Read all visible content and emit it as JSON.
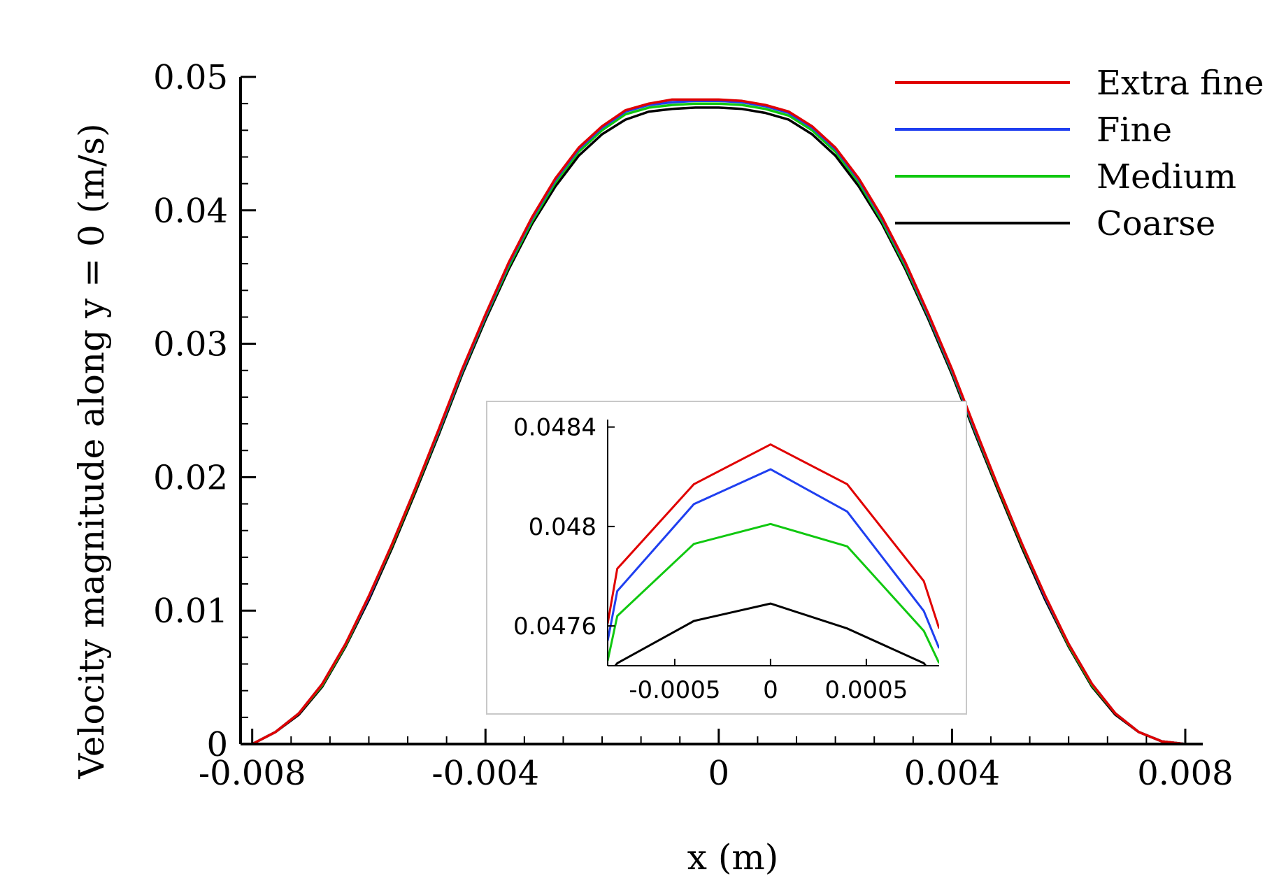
{
  "chart_data": {
    "type": "line",
    "title": "",
    "xlabel": "x (m)",
    "ylabel": "Velocity magnitude along y = 0 (m/s)",
    "xlim": [
      -0.0082,
      0.0083
    ],
    "ylim": [
      0,
      0.05
    ],
    "x_ticks": [
      -0.008,
      -0.004,
      0,
      0.004,
      0.008
    ],
    "x_tick_labels": [
      "-0.008",
      "-0.004",
      "0",
      "0.004",
      "0.008"
    ],
    "y_ticks": [
      0,
      0.01,
      0.02,
      0.03,
      0.04,
      0.05
    ],
    "y_tick_labels": [
      "0",
      "0.01",
      "0.02",
      "0.03",
      "0.04",
      "0.05"
    ],
    "legend_position": "top-right",
    "x": [
      -0.008,
      -0.0076,
      -0.0072,
      -0.0068,
      -0.0064,
      -0.006,
      -0.0056,
      -0.0052,
      -0.0048,
      -0.0044,
      -0.004,
      -0.0036,
      -0.0032,
      -0.0028,
      -0.0024,
      -0.002,
      -0.0016,
      -0.0012,
      -0.0008,
      -0.0004,
      0,
      0.0004,
      0.0008,
      0.0012,
      0.0016,
      0.002,
      0.0024,
      0.0028,
      0.0032,
      0.0036,
      0.004,
      0.0044,
      0.0048,
      0.0052,
      0.0056,
      0.006,
      0.0064,
      0.0068,
      0.0072,
      0.0076,
      0.008
    ],
    "series": [
      {
        "name": "Extra fine",
        "color": "#e00000",
        "values": [
          0,
          0.0009,
          0.0023,
          0.0045,
          0.0075,
          0.0111,
          0.015,
          0.0192,
          0.0236,
          0.0281,
          0.0322,
          0.0361,
          0.0395,
          0.0424,
          0.0447,
          0.0463,
          0.0475,
          0.048,
          0.0483,
          0.0483,
          0.0483,
          0.0482,
          0.0479,
          0.0474,
          0.0463,
          0.0447,
          0.0424,
          0.0395,
          0.0361,
          0.0322,
          0.0281,
          0.0236,
          0.0192,
          0.015,
          0.0111,
          0.0075,
          0.0045,
          0.0023,
          0.0009,
          0.0002,
          0
        ]
      },
      {
        "name": "Fine",
        "color": "#1f3ff0",
        "values": [
          0,
          0.0009,
          0.0023,
          0.0045,
          0.0075,
          0.011,
          0.015,
          0.0192,
          0.0235,
          0.028,
          0.0321,
          0.036,
          0.0394,
          0.0423,
          0.0446,
          0.0462,
          0.0474,
          0.0479,
          0.0481,
          0.0482,
          0.0482,
          0.0481,
          0.0478,
          0.0473,
          0.0462,
          0.0446,
          0.0423,
          0.0394,
          0.036,
          0.0321,
          0.028,
          0.0235,
          0.0192,
          0.015,
          0.011,
          0.0075,
          0.0045,
          0.0023,
          0.0009,
          0.0002,
          0
        ]
      },
      {
        "name": "Medium",
        "color": "#10c810",
        "values": [
          0,
          0.0009,
          0.0023,
          0.0044,
          0.0074,
          0.011,
          0.0149,
          0.0191,
          0.0234,
          0.0279,
          0.032,
          0.0358,
          0.0392,
          0.0421,
          0.0444,
          0.046,
          0.0472,
          0.0477,
          0.0479,
          0.048,
          0.048,
          0.0479,
          0.0476,
          0.0471,
          0.046,
          0.0444,
          0.0421,
          0.0392,
          0.0358,
          0.032,
          0.0279,
          0.0234,
          0.0191,
          0.0149,
          0.011,
          0.0074,
          0.0044,
          0.0023,
          0.0009,
          0.0002,
          0
        ]
      },
      {
        "name": "Coarse",
        "color": "#000000",
        "values": [
          0,
          0.0009,
          0.0022,
          0.0043,
          0.0073,
          0.0108,
          0.0147,
          0.0189,
          0.0232,
          0.0277,
          0.0318,
          0.0356,
          0.039,
          0.0418,
          0.0441,
          0.0457,
          0.0468,
          0.0474,
          0.0476,
          0.0477,
          0.0477,
          0.0476,
          0.0473,
          0.0468,
          0.0457,
          0.0441,
          0.0418,
          0.039,
          0.0356,
          0.0318,
          0.0277,
          0.0232,
          0.0189,
          0.0147,
          0.0108,
          0.0073,
          0.0043,
          0.0022,
          0.0009,
          0.0002,
          0
        ]
      }
    ],
    "inset": {
      "xlim": [
        -0.00085,
        0.00088
      ],
      "ylim": [
        0.04744,
        0.04843
      ],
      "x_ticks": [
        -0.0005,
        0,
        0.0005
      ],
      "x_tick_labels": [
        "-0.0005",
        "0",
        "0.0005"
      ],
      "y_ticks": [
        0.0476,
        0.048,
        0.0484
      ],
      "y_tick_labels": [
        "0.0476",
        "0.048",
        "0.0484"
      ],
      "x": [
        -0.00085,
        -0.0008,
        -0.0004,
        0,
        0.0004,
        0.0008,
        0.00088
      ],
      "series": [
        {
          "name": "Extra fine",
          "color": "#e00000",
          "values": [
            0.04761,
            0.04783,
            0.04817,
            0.04833,
            0.04817,
            0.04778,
            0.04759
          ]
        },
        {
          "name": "Fine",
          "color": "#1f3ff0",
          "values": [
            0.04754,
            0.04774,
            0.04809,
            0.04823,
            0.04806,
            0.04766,
            0.04751
          ]
        },
        {
          "name": "Medium",
          "color": "#10c810",
          "values": [
            0.04746,
            0.04764,
            0.04793,
            0.04801,
            0.04792,
            0.04758,
            0.04745
          ]
        },
        {
          "name": "Coarse",
          "color": "#000000",
          "values": [
            0.0474,
            0.04745,
            0.04762,
            0.04769,
            0.04759,
            0.04745,
            0.04737
          ]
        }
      ]
    }
  }
}
